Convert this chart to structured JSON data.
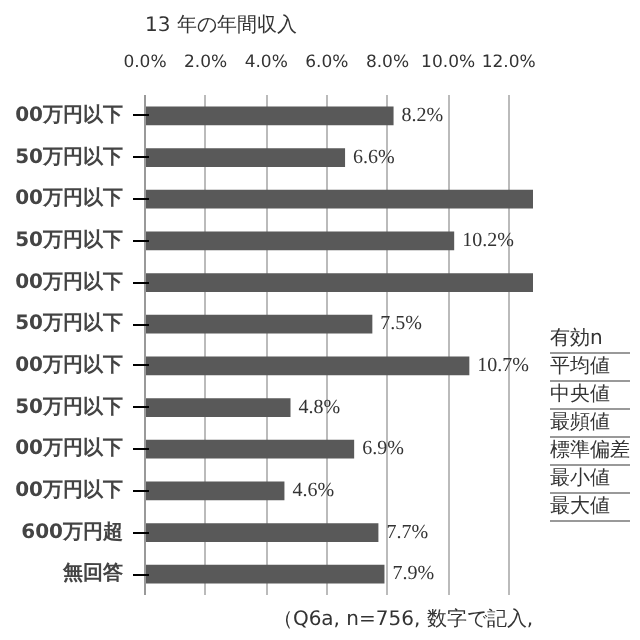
{
  "chart_data": {
    "type": "bar",
    "orientation": "horizontal",
    "title": "13 年の年間収入",
    "categories": [
      "00万円以下",
      "50万円以下",
      "00万円以下",
      "50万円以下",
      "00万円以下",
      "50万円以下",
      "00万円以下",
      "50万円以下",
      "00万円以下",
      "00万円以下",
      "600万円超",
      "無回答"
    ],
    "values": [
      8.2,
      6.6,
      12.8,
      10.2,
      12.8,
      7.5,
      10.7,
      4.8,
      6.9,
      4.6,
      7.7,
      7.9
    ],
    "value_labels": [
      "8.2%",
      "6.6%",
      null,
      "10.2%",
      null,
      "7.5%",
      "10.7%",
      "4.8%",
      "6.9%",
      "4.6%",
      "7.7%",
      "7.9%"
    ],
    "color": "#595959",
    "xlim": [
      0,
      12.8
    ],
    "xticks": [
      {
        "value": 0,
        "label": "0.0%"
      },
      {
        "value": 2,
        "label": "2.0%"
      },
      {
        "value": 4,
        "label": "4.0%"
      },
      {
        "value": 6,
        "label": "6.0%"
      },
      {
        "value": 8,
        "label": "8.0%"
      },
      {
        "value": 10,
        "label": "10.0%"
      },
      {
        "value": 12,
        "label": "12.0%"
      }
    ],
    "grid": "x",
    "annotations": [
      "有効n",
      "平均値",
      "中央値",
      "最頻値",
      "標準偏差",
      "最小値",
      "最大値",
      "（Q6a, n=756, 数字で記入,"
    ]
  }
}
